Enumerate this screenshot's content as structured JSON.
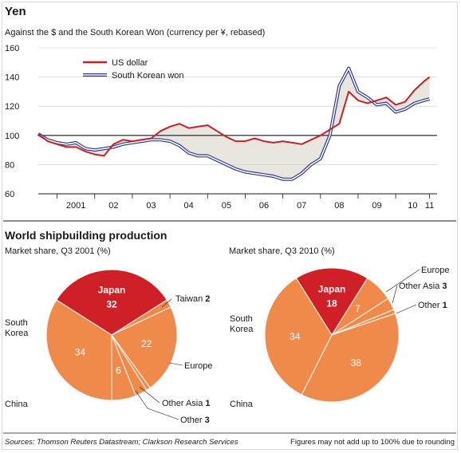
{
  "colors": {
    "usd": "#c8202a",
    "krw": "#2b3a8f",
    "band": "#e9e6df",
    "japan": "#cf2027",
    "others": "#f08a4b",
    "grid": "#c9c9c9",
    "rule": "#1a1a1a"
  },
  "top": {
    "title": "Yen",
    "subtitle": "Against the $ and the South Korean Won (currency per ¥, rebased)"
  },
  "bottom": {
    "title": "World shipbuilding production"
  },
  "footer": {
    "sources": "Sources: Thomson Reuters Datastream; Clarkson Research Services",
    "note": "Figures may not add up to 100% due to rounding"
  },
  "chart_data": [
    {
      "type": "line",
      "ylim": [
        60,
        160
      ],
      "yticks": [
        "60",
        "80",
        "100",
        "120",
        "140",
        "160"
      ],
      "baseline": 100,
      "xlim": [
        2000.5,
        2011.1
      ],
      "xticklabels": [
        "2001",
        "02",
        "03",
        "04",
        "05",
        "06",
        "07",
        "08",
        "09",
        "10",
        "11"
      ],
      "xtickpos": [
        2001.0,
        2002.0,
        2003.0,
        2004.0,
        2005.0,
        2006.0,
        2007.0,
        2008.0,
        2009.0,
        2010.0,
        2010.9
      ],
      "legend": [
        "US dollar",
        "South Korean won"
      ],
      "series": [
        {
          "name": "US dollar",
          "x": [
            2000.5,
            2000.75,
            2001.0,
            2001.25,
            2001.5,
            2001.75,
            2002.0,
            2002.25,
            2002.5,
            2002.75,
            2003.0,
            2003.25,
            2003.5,
            2003.75,
            2004.0,
            2004.25,
            2004.5,
            2004.75,
            2005.0,
            2005.25,
            2005.5,
            2005.75,
            2006.0,
            2006.25,
            2006.5,
            2006.75,
            2007.0,
            2007.25,
            2007.5,
            2007.75,
            2008.0,
            2008.25,
            2008.5,
            2008.75,
            2009.0,
            2009.25,
            2009.5,
            2009.75,
            2010.0,
            2010.25,
            2010.5,
            2010.75,
            2010.9
          ],
          "values": [
            101,
            96,
            94,
            92,
            92,
            89,
            87,
            86,
            94,
            97,
            96,
            97,
            98,
            103,
            106,
            108,
            105,
            106,
            107,
            103,
            99,
            96,
            96,
            98,
            96,
            95,
            96,
            95,
            94,
            97,
            100,
            104,
            108,
            130,
            124,
            122,
            124,
            126,
            121,
            123,
            131,
            137,
            140
          ]
        },
        {
          "name": "South Korean won",
          "x": [
            2000.5,
            2000.75,
            2001.0,
            2001.25,
            2001.5,
            2001.75,
            2002.0,
            2002.25,
            2002.5,
            2002.75,
            2003.0,
            2003.25,
            2003.5,
            2003.75,
            2004.0,
            2004.25,
            2004.5,
            2004.75,
            2005.0,
            2005.25,
            2005.5,
            2005.75,
            2006.0,
            2006.25,
            2006.5,
            2006.75,
            2007.0,
            2007.25,
            2007.5,
            2007.75,
            2008.0,
            2008.25,
            2008.5,
            2008.75,
            2009.0,
            2009.25,
            2009.5,
            2009.75,
            2010.0,
            2010.25,
            2010.5,
            2010.75,
            2010.9
          ],
          "values": [
            101,
            97,
            95,
            94,
            95,
            91,
            90,
            91,
            92,
            94,
            95,
            96,
            97,
            97,
            96,
            93,
            88,
            86,
            86,
            83,
            80,
            77,
            75,
            74,
            73,
            72,
            70,
            70,
            74,
            80,
            84,
            100,
            134,
            146,
            130,
            126,
            121,
            122,
            116,
            118,
            122,
            124,
            125
          ]
        }
      ]
    },
    {
      "type": "pie",
      "title": "Market share, Q3 2001 (%)",
      "slices": [
        {
          "label": "Japan",
          "value": 32,
          "inside": true
        },
        {
          "label": "Taiwan",
          "value": 2
        },
        {
          "label": "Europe",
          "value": 22,
          "inside": true
        },
        {
          "label": "Other Asia",
          "value": 1
        },
        {
          "label": "Other",
          "value": 3
        },
        {
          "label": "China",
          "value": 6,
          "inside": true
        },
        {
          "label": "South Korea",
          "value": 34,
          "inside": true
        }
      ],
      "outside_labels": [
        {
          "name": "Taiwan",
          "value": "2"
        },
        {
          "name": "Europe",
          "value": ""
        },
        {
          "name": "Other Asia",
          "value": "1"
        },
        {
          "name": "Other",
          "value": "3"
        },
        {
          "name": "China",
          "value": ""
        },
        {
          "name": "South\nKorea",
          "value": ""
        }
      ]
    },
    {
      "type": "pie",
      "title": "Market share, Q3 2010 (%)",
      "slices": [
        {
          "label": "Japan",
          "value": 18,
          "inside": true
        },
        {
          "label": "Europe",
          "value": 7,
          "inside": true
        },
        {
          "label": "Other Asia",
          "value": 3
        },
        {
          "label": "Other",
          "value": 1
        },
        {
          "label": "China",
          "value": 38,
          "inside": true
        },
        {
          "label": "South Korea",
          "value": 34,
          "inside": true
        }
      ],
      "outside_labels": [
        {
          "name": "Europe",
          "value": ""
        },
        {
          "name": "Other Asia",
          "value": "3"
        },
        {
          "name": "Other",
          "value": "1"
        },
        {
          "name": "South\nKorea",
          "value": ""
        },
        {
          "name": "China",
          "value": ""
        }
      ]
    }
  ]
}
